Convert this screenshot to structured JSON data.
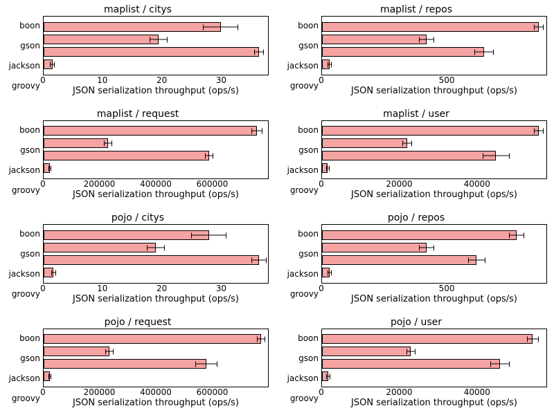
{
  "bar_color": "#f5a3a3",
  "bar_border_color": "#000000",
  "err_color": "#000000",
  "background": "#ffffff",
  "xlabel": "JSON serialization throughput (ops/s)",
  "title_fontsize": 14,
  "label_fontsize": 13,
  "tick_fontsize": 12,
  "font_family": "DejaVu Sans",
  "y_categories": [
    "boon",
    "gson",
    "jackson",
    "groovy"
  ],
  "subplots": [
    {
      "title": "maplist / citys",
      "type": "barh",
      "xlim": [
        0,
        38
      ],
      "xticks": [
        0,
        10,
        20,
        30
      ],
      "values": [
        30,
        19.5,
        36.5,
        1.5
      ],
      "errors": [
        3,
        1.5,
        0.8,
        0.4
      ]
    },
    {
      "title": "maplist / repos",
      "type": "barh",
      "xlim": [
        0,
        900
      ],
      "xticks": [
        0,
        500
      ],
      "values": [
        870,
        420,
        650,
        30
      ],
      "errors": [
        20,
        30,
        40,
        8
      ]
    },
    {
      "title": "maplist / request",
      "type": "barh",
      "xlim": [
        0,
        800000
      ],
      "xticks": [
        0,
        200000,
        400000,
        600000
      ],
      "values": [
        760000,
        230000,
        590000,
        22000
      ],
      "errors": [
        20000,
        15000,
        15000,
        5000
      ]
    },
    {
      "title": "maplist / user",
      "type": "barh",
      "xlim": [
        0,
        58000
      ],
      "xticks": [
        0,
        20000,
        40000
      ],
      "values": [
        56000,
        22000,
        45000,
        1500
      ],
      "errors": [
        1200,
        1200,
        3500,
        500
      ]
    },
    {
      "title": "pojo / citys",
      "type": "barh",
      "xlim": [
        0,
        38
      ],
      "xticks": [
        0,
        10,
        20,
        30
      ],
      "values": [
        28,
        19,
        36.5,
        1.7
      ],
      "errors": [
        3,
        1.5,
        1.3,
        0.4
      ]
    },
    {
      "title": "pojo / repos",
      "type": "barh",
      "xlim": [
        0,
        900
      ],
      "xticks": [
        0,
        500
      ],
      "values": [
        780,
        420,
        620,
        30
      ],
      "errors": [
        30,
        30,
        35,
        8
      ]
    },
    {
      "title": "pojo / request",
      "type": "barh",
      "xlim": [
        0,
        800000
      ],
      "xticks": [
        0,
        200000,
        400000,
        600000
      ],
      "values": [
        775000,
        235000,
        580000,
        22000
      ],
      "errors": [
        15000,
        15000,
        40000,
        5000
      ]
    },
    {
      "title": "pojo / user",
      "type": "barh",
      "xlim": [
        0,
        58000
      ],
      "xticks": [
        0,
        20000,
        40000
      ],
      "values": [
        54500,
        23000,
        46000,
        1600
      ],
      "errors": [
        1500,
        1200,
        2500,
        500
      ]
    }
  ]
}
